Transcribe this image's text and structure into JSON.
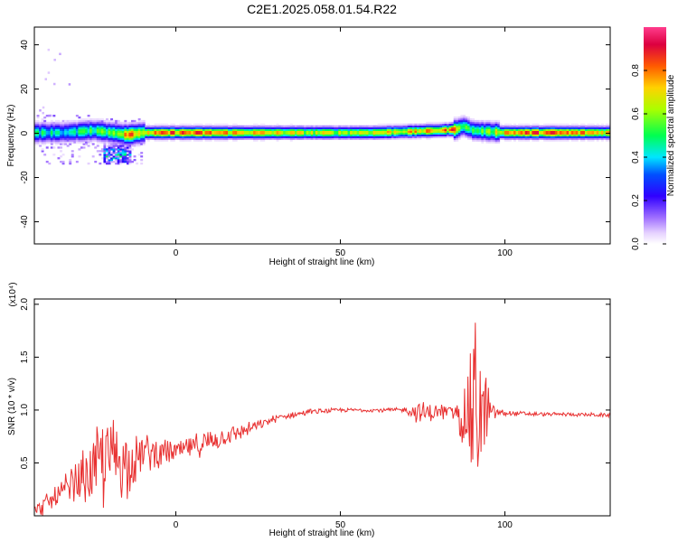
{
  "figure_title": "C2E1.2025.058.01.54.R22",
  "chart_data": [
    {
      "type": "heatmap",
      "title": "C2E1.2025.058.01.54.R22",
      "xlabel": "Height of straight line (km)",
      "ylabel": "Frequency (Hz)",
      "xlim": [
        -43,
        132
      ],
      "ylim": [
        -50,
        48
      ],
      "xticks": [
        0,
        50,
        100
      ],
      "yticks": [
        -40,
        -20,
        0,
        20,
        40
      ],
      "colorbar": {
        "label": "Normalized spectral amplitude",
        "range": [
          0.0,
          1.0
        ],
        "ticks": [
          0.0,
          0.2,
          0.4,
          0.6,
          0.8
        ],
        "tick_labels": [
          "0.0",
          "0.2",
          "0.4",
          "0.6",
          "0.8"
        ],
        "colors": [
          "#ffffff",
          "#c8a0ff",
          "#3c00ff",
          "#00dcff",
          "#00ff50",
          "#96ff00",
          "#ffd200",
          "#ff5000",
          "#dc0050",
          "#ff3c8c"
        ]
      },
      "ridge": {
        "description_points_x": [
          -43,
          -35,
          -30,
          -25,
          -20,
          -15,
          -10,
          0,
          10,
          20,
          30,
          40,
          50,
          60,
          70,
          80,
          85,
          87,
          90,
          95,
          100,
          110,
          120,
          132
        ],
        "center_freq": [
          0,
          0,
          0.5,
          1,
          0,
          -1,
          0,
          0,
          0,
          0,
          0,
          0,
          0,
          0,
          0.5,
          1,
          1.5,
          3,
          1,
          0.5,
          0,
          0,
          0,
          0
        ],
        "peak_amplitude": [
          0.5,
          0.45,
          0.5,
          0.55,
          0.6,
          0.85,
          0.75,
          0.9,
          0.85,
          0.8,
          0.75,
          0.7,
          0.7,
          0.75,
          0.75,
          0.8,
          0.9,
          0.55,
          0.55,
          0.6,
          0.85,
          0.9,
          0.85,
          0.8
        ]
      }
    },
    {
      "type": "line",
      "xlabel": "Height of straight line (km)",
      "ylabel": "SNR (10 * v/v)",
      "y_multiplier_label": "(x10⁴)",
      "xlim": [
        -43,
        132
      ],
      "ylim": [
        0,
        2.05
      ],
      "xticks": [
        0,
        50,
        100
      ],
      "yticks": [
        0.5,
        1.0,
        1.5,
        2.0
      ],
      "ytick_labels": [
        "0.5",
        "1.0",
        "1.5",
        "2.0"
      ],
      "color": "#e83030",
      "envelope": {
        "x": [
          -43,
          -40,
          -35,
          -30,
          -25,
          -22,
          -20,
          -17,
          -15,
          -12,
          -10,
          -5,
          0,
          5,
          10,
          15,
          20,
          25,
          30,
          35,
          40,
          50,
          60,
          70,
          73,
          76,
          80,
          85,
          88,
          90,
          91,
          92,
          93,
          94,
          96,
          100,
          110,
          120,
          132
        ],
        "mean": [
          0.05,
          0.1,
          0.2,
          0.3,
          0.45,
          0.5,
          0.55,
          0.55,
          0.5,
          0.55,
          0.6,
          0.6,
          0.6,
          0.65,
          0.7,
          0.75,
          0.8,
          0.85,
          0.92,
          0.95,
          0.98,
          1.0,
          1.0,
          1.0,
          0.98,
          0.97,
          0.98,
          0.98,
          0.97,
          0.95,
          0.95,
          0.95,
          0.95,
          0.97,
          0.98,
          0.97,
          0.96,
          0.96,
          0.95
        ],
        "spread": [
          0.05,
          0.1,
          0.15,
          0.25,
          0.35,
          0.5,
          0.55,
          0.4,
          0.35,
          0.25,
          0.2,
          0.15,
          0.12,
          0.12,
          0.12,
          0.1,
          0.08,
          0.05,
          0.04,
          0.03,
          0.03,
          0.02,
          0.02,
          0.03,
          0.1,
          0.12,
          0.08,
          0.1,
          0.4,
          0.8,
          1.0,
          0.7,
          0.6,
          0.5,
          0.1,
          0.03,
          0.02,
          0.02,
          0.02
        ]
      }
    }
  ]
}
